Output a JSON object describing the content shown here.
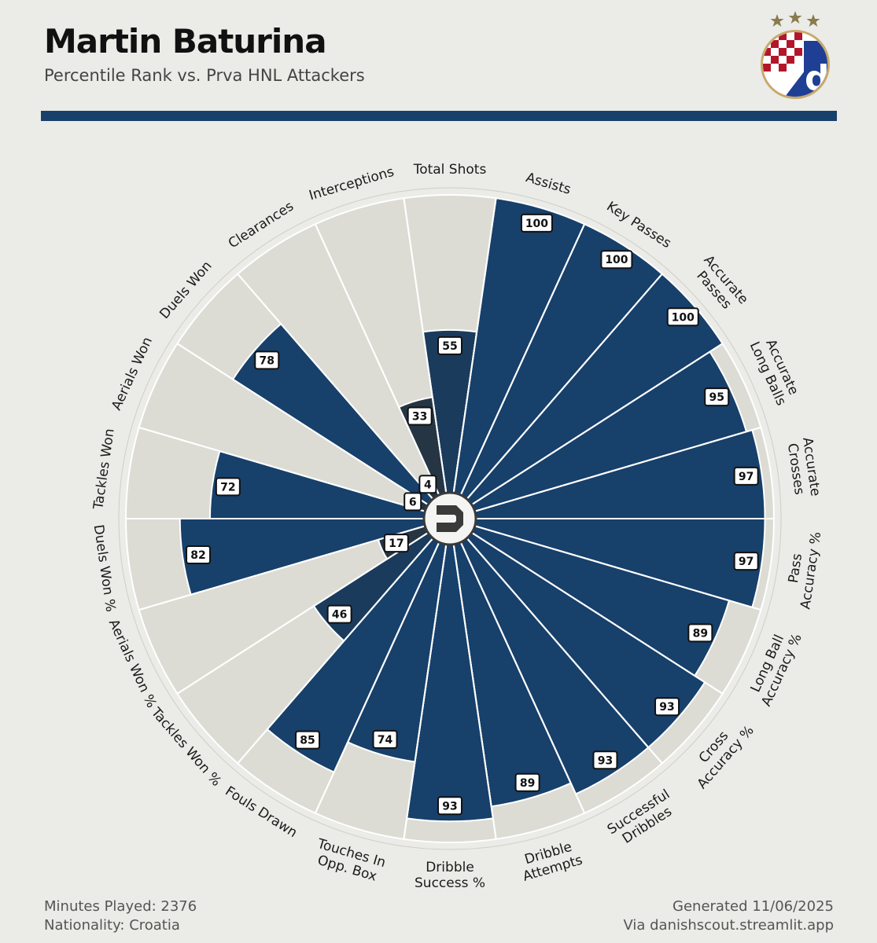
{
  "header": {
    "player_name": "Martin Baturina",
    "subtitle": "Percentile Rank vs. Prva HNL Attackers"
  },
  "footer": {
    "minutes": "Minutes Played: 2376",
    "nationality": "Nationality: Croatia",
    "generated": "Generated 11/06/2025",
    "via": "Via danishscout.streamlit.app"
  },
  "colors": {
    "background": "#ebebe7",
    "bar_high": "#17406b",
    "bar_mid": "#1b3b5c",
    "bar_low": "#253544",
    "track": "#dcdcd5",
    "accent_rule": "#17406b"
  },
  "icons": {
    "club_crest": "dinamo-zagreb-crest-icon",
    "center_logo": "danishscout-logo-icon"
  },
  "chart_data": {
    "type": "polar-bar",
    "title": "Percentile Rank vs. Prva HNL Attackers",
    "range": [
      0,
      100
    ],
    "categories": [
      "Total Shots",
      "Assists",
      "Key Passes",
      "Accurate Passes",
      "Accurate Long Balls",
      "Accurate Crosses",
      "Pass Accuracy %",
      "Long Ball Accuracy %",
      "Cross Accuracy %",
      "Successful Dribbles",
      "Dribble Attempts",
      "Dribble Success %",
      "Touches In Opp. Box",
      "Fouls Drawn",
      "Tackles Won %",
      "Aerials Won %",
      "Duels Won %",
      "Tackles Won",
      "Aerials Won",
      "Duels Won",
      "Clearances",
      "Interceptions"
    ],
    "label_lines": [
      [
        "Total Shots"
      ],
      [
        "Assists"
      ],
      [
        "Key Passes"
      ],
      [
        "Accurate",
        "Passes"
      ],
      [
        "Accurate",
        "Long Balls"
      ],
      [
        "Accurate",
        "Crosses"
      ],
      [
        "Pass",
        "Accuracy %"
      ],
      [
        "Long Ball",
        "Accuracy %"
      ],
      [
        "Cross",
        "Accuracy %"
      ],
      [
        "Successful",
        "Dribbles"
      ],
      [
        "Dribble",
        "Attempts"
      ],
      [
        "Dribble",
        "Success %"
      ],
      [
        "Touches In",
        "Opp. Box"
      ],
      [
        "Fouls Drawn"
      ],
      [
        "Tackles Won %"
      ],
      [
        "Aerials Won %"
      ],
      [
        "Duels Won %"
      ],
      [
        "Tackles Won"
      ],
      [
        "Aerials Won"
      ],
      [
        "Duels Won"
      ],
      [
        "Clearances"
      ],
      [
        "Interceptions"
      ]
    ],
    "values": [
      55,
      100,
      100,
      100,
      95,
      97,
      97,
      89,
      93,
      93,
      89,
      93,
      74,
      85,
      46,
      17,
      82,
      72,
      6,
      78,
      4,
      33
    ]
  }
}
